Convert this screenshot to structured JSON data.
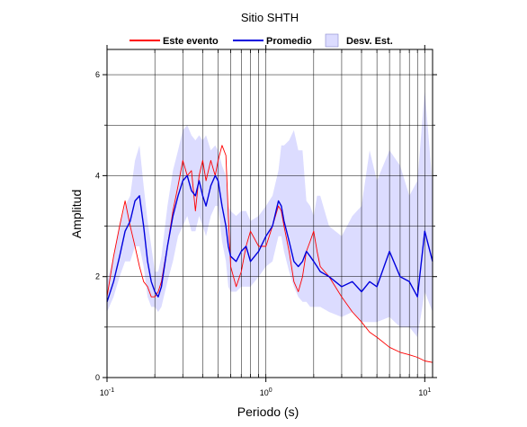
{
  "chart_data": {
    "type": "line",
    "title": "Sitio SHTH",
    "xlabel": "Periodo (s)",
    "ylabel": "Amplitud",
    "x_scale": "log",
    "xlim": [
      0.1,
      11.2
    ],
    "ylim": [
      0,
      6.5
    ],
    "grid": true,
    "legend_position": "top",
    "x_ticks": [
      {
        "value": 0.1,
        "base": "10",
        "exp": "-1"
      },
      {
        "value": 1,
        "base": "10",
        "exp": "0"
      },
      {
        "value": 10,
        "base": "10",
        "exp": "1"
      }
    ],
    "y_ticks": [
      0,
      2,
      4,
      6
    ],
    "legend": [
      {
        "label": "Este evento",
        "kind": "line",
        "color": "#ff0000"
      },
      {
        "label": "Promedio",
        "kind": "line",
        "color": "#0000dd"
      },
      {
        "label": "Desv. Est.",
        "kind": "area",
        "color": "#dcdcff"
      }
    ],
    "series": [
      {
        "name": "Este evento",
        "color": "#ff0000",
        "x": [
          0.1,
          0.11,
          0.12,
          0.13,
          0.14,
          0.15,
          0.16,
          0.17,
          0.18,
          0.19,
          0.2,
          0.21,
          0.22,
          0.24,
          0.26,
          0.28,
          0.3,
          0.32,
          0.34,
          0.36,
          0.38,
          0.4,
          0.42,
          0.45,
          0.48,
          0.5,
          0.53,
          0.56,
          0.58,
          0.6,
          0.65,
          0.7,
          0.75,
          0.8,
          0.9,
          1.0,
          1.1,
          1.2,
          1.25,
          1.3,
          1.4,
          1.5,
          1.6,
          1.7,
          1.8,
          1.9,
          2.0,
          2.1,
          2.2,
          2.5,
          3.0,
          3.5,
          4.0,
          4.5,
          5.0,
          6.0,
          7.0,
          8.0,
          9.0,
          10.0,
          11.2
        ],
        "y": [
          1.6,
          2.4,
          3.0,
          3.5,
          3.0,
          2.6,
          2.2,
          1.9,
          1.8,
          1.6,
          1.6,
          1.7,
          1.9,
          2.6,
          3.3,
          3.8,
          4.3,
          4.0,
          4.1,
          3.3,
          4.0,
          4.3,
          3.9,
          4.3,
          4.0,
          4.3,
          4.6,
          4.4,
          3.2,
          2.2,
          1.8,
          2.1,
          2.6,
          2.9,
          2.6,
          2.6,
          3.0,
          3.4,
          3.3,
          3.0,
          2.5,
          1.9,
          1.7,
          2.0,
          2.5,
          2.7,
          2.9,
          2.5,
          2.2,
          2.0,
          1.6,
          1.3,
          1.1,
          0.9,
          0.8,
          0.6,
          0.5,
          0.45,
          0.4,
          0.33,
          0.3
        ]
      },
      {
        "name": "Promedio",
        "color": "#0000dd",
        "x": [
          0.1,
          0.11,
          0.12,
          0.13,
          0.14,
          0.15,
          0.16,
          0.17,
          0.18,
          0.19,
          0.2,
          0.21,
          0.22,
          0.24,
          0.26,
          0.28,
          0.3,
          0.32,
          0.34,
          0.36,
          0.38,
          0.4,
          0.42,
          0.45,
          0.48,
          0.5,
          0.53,
          0.56,
          0.58,
          0.6,
          0.65,
          0.7,
          0.75,
          0.8,
          0.9,
          1.0,
          1.1,
          1.2,
          1.25,
          1.3,
          1.4,
          1.5,
          1.6,
          1.7,
          1.8,
          1.9,
          2.0,
          2.1,
          2.2,
          2.5,
          3.0,
          3.5,
          4.0,
          4.5,
          5.0,
          6.0,
          7.0,
          8.0,
          9.0,
          10.0,
          11.2
        ],
        "y": [
          1.5,
          1.9,
          2.4,
          2.9,
          3.1,
          3.5,
          3.6,
          3.0,
          2.3,
          1.9,
          1.7,
          1.6,
          1.8,
          2.6,
          3.2,
          3.6,
          3.9,
          4.0,
          3.7,
          3.6,
          3.9,
          3.6,
          3.4,
          3.8,
          4.0,
          3.9,
          3.4,
          3.0,
          2.6,
          2.4,
          2.3,
          2.5,
          2.6,
          2.3,
          2.5,
          2.8,
          3.0,
          3.5,
          3.4,
          3.1,
          2.7,
          2.3,
          2.2,
          2.3,
          2.5,
          2.4,
          2.3,
          2.2,
          2.1,
          2.0,
          1.8,
          1.9,
          1.7,
          1.9,
          1.8,
          2.5,
          2.0,
          1.9,
          1.6,
          2.9,
          2.3
        ]
      }
    ],
    "std_band": {
      "name": "Desv. Est.",
      "color": "#dcdcff",
      "x": [
        0.1,
        0.11,
        0.12,
        0.13,
        0.14,
        0.15,
        0.16,
        0.17,
        0.18,
        0.19,
        0.2,
        0.21,
        0.22,
        0.24,
        0.26,
        0.28,
        0.3,
        0.32,
        0.34,
        0.36,
        0.38,
        0.4,
        0.42,
        0.45,
        0.48,
        0.5,
        0.53,
        0.56,
        0.58,
        0.6,
        0.65,
        0.7,
        0.75,
        0.8,
        0.9,
        1.0,
        1.1,
        1.2,
        1.25,
        1.3,
        1.4,
        1.5,
        1.6,
        1.7,
        1.8,
        1.9,
        2.0,
        2.1,
        2.2,
        2.5,
        3.0,
        3.5,
        4.0,
        4.5,
        5.0,
        6.0,
        7.0,
        8.0,
        9.0,
        10.0,
        11.2
      ],
      "lower": [
        1.3,
        1.6,
        2.0,
        2.3,
        2.3,
        2.6,
        2.6,
        2.2,
        1.6,
        1.4,
        1.4,
        1.3,
        1.4,
        1.9,
        2.3,
        2.8,
        3.0,
        3.2,
        2.9,
        2.9,
        3.2,
        3.0,
        2.8,
        3.2,
        3.4,
        3.4,
        2.7,
        2.3,
        1.8,
        1.7,
        1.7,
        1.8,
        1.8,
        1.8,
        2.0,
        2.2,
        2.3,
        2.8,
        2.8,
        2.5,
        2.1,
        1.8,
        1.6,
        1.5,
        1.5,
        1.4,
        1.4,
        1.4,
        1.4,
        1.3,
        1.2,
        1.3,
        1.1,
        1.1,
        1.1,
        1.2,
        1.0,
        1.0,
        0.8,
        1.7,
        1.3
      ],
      "upper": [
        1.9,
        2.4,
        3.0,
        3.4,
        3.6,
        4.3,
        4.6,
        3.8,
        3.1,
        2.6,
        2.1,
        2.1,
        2.4,
        3.4,
        4.1,
        4.5,
        4.9,
        5.0,
        4.8,
        4.7,
        4.8,
        4.7,
        4.8,
        4.5,
        4.6,
        4.5,
        4.2,
        4.0,
        3.4,
        3.3,
        3.2,
        3.3,
        3.3,
        3.1,
        3.2,
        3.4,
        3.6,
        4.1,
        4.6,
        4.6,
        4.7,
        4.9,
        4.5,
        4.5,
        3.5,
        3.4,
        3.2,
        3.6,
        3.6,
        3.0,
        2.8,
        3.2,
        3.4,
        4.5,
        3.9,
        4.5,
        4.2,
        3.6,
        3.9,
        5.7,
        3.8
      ]
    }
  }
}
